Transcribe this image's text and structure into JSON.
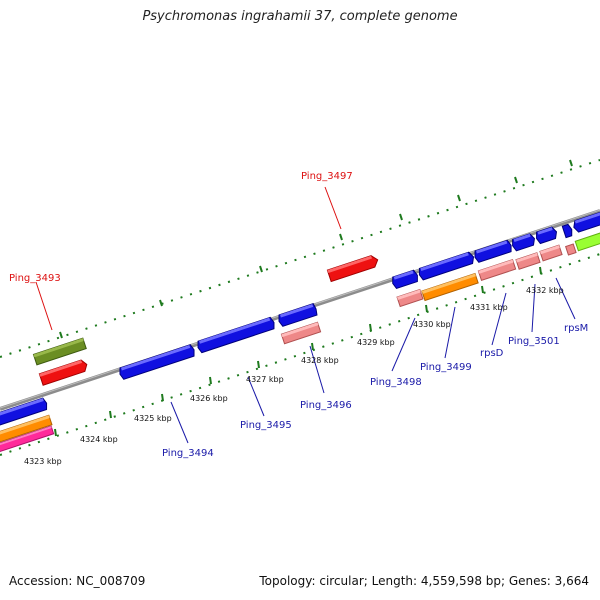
{
  "title": "Psychromonas ingrahamii 37, complete genome",
  "footer": {
    "accession": "Accession: NC_008709",
    "summary": "Topology: circular; Length: 4,559,598 bp; Genes: 3,664"
  },
  "colors": {
    "backbone": "#8c8c8c",
    "tick": "#1e7a1e",
    "cds": "#1010e0",
    "label_lower": "#1a1aa8",
    "label_upper": "#dd1111"
  },
  "ticks": [
    "4323 kbp",
    "4324 kbp",
    "4325 kbp",
    "4326 kbp",
    "4327 kbp",
    "4328 kbp",
    "4329 kbp",
    "4330 kbp",
    "4331 kbp",
    "4332 kbp"
  ],
  "labels": {
    "ping_3493": "Ping_3493",
    "ping_3497": "Ping_3497",
    "ping_3494": "Ping_3494",
    "ping_3495": "Ping_3495",
    "ping_3496": "Ping_3496",
    "ping_3498": "Ping_3498",
    "ping_3499": "Ping_3499",
    "rpsD": "rpsD",
    "ping_3501": "Ping_3501",
    "rpsM": "rpsM"
  }
}
